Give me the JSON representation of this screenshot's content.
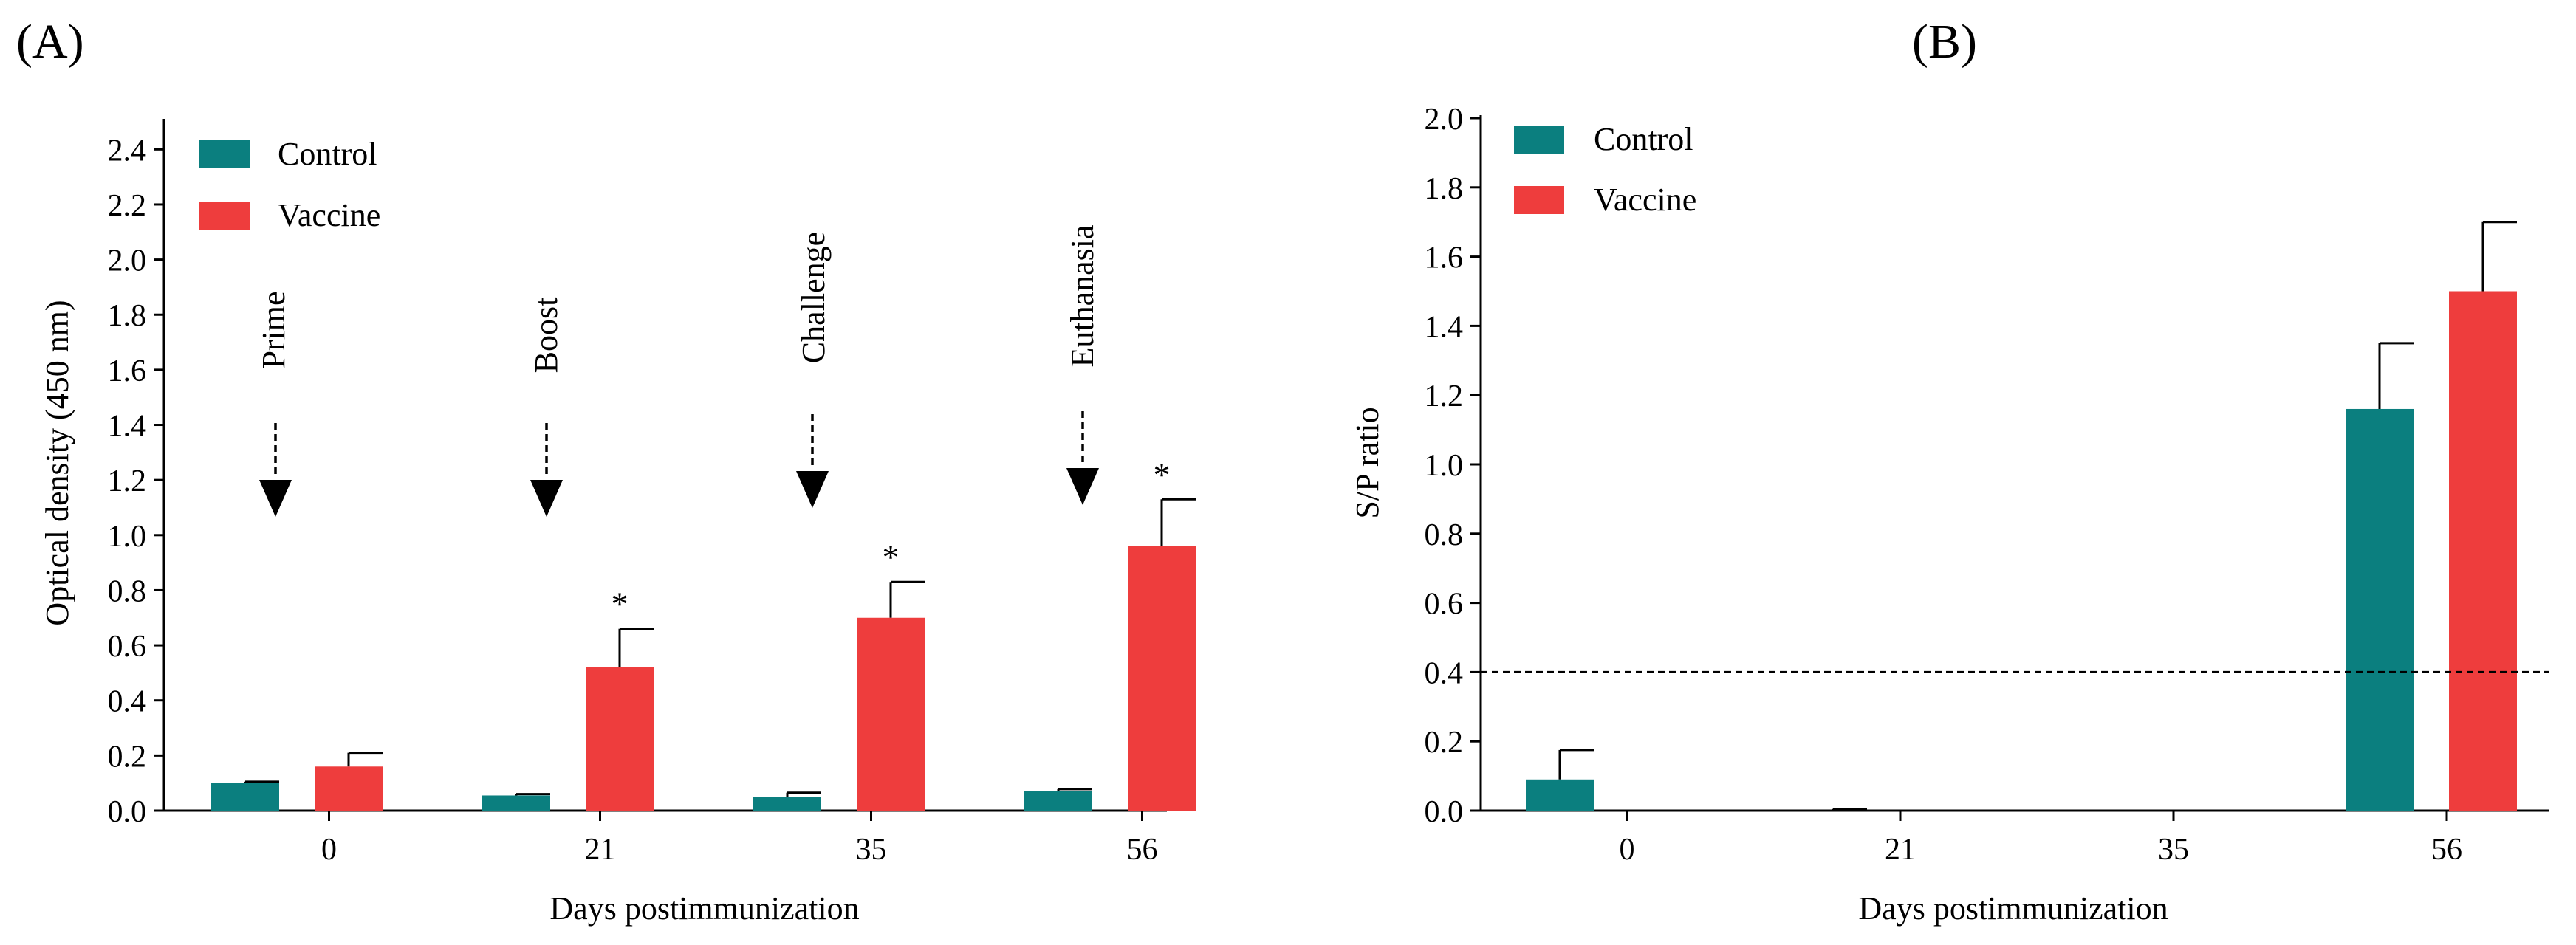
{
  "chart_data": [
    {
      "panel_label": "(A)",
      "type": "bar",
      "xlabel": "Days postimmunization",
      "ylabel": "Optical density (450 nm)",
      "ylim": [
        0,
        2.5
      ],
      "yticks": [
        "0.0",
        "0.2",
        "0.4",
        "0.6",
        "0.8",
        "1.0",
        "1.2",
        "1.4",
        "1.6",
        "1.8",
        "2.0",
        "2.2",
        "2.4"
      ],
      "categories": [
        "0",
        "21",
        "35",
        "56"
      ],
      "series": [
        {
          "name": "Control",
          "color": "#0B7F7F",
          "values": [
            0.1,
            0.055,
            0.05,
            0.07
          ],
          "errors": [
            0.005,
            0.005,
            0.015,
            0.008
          ]
        },
        {
          "name": "Vaccine",
          "color": "#EE3D3D",
          "values": [
            0.16,
            0.52,
            0.7,
            0.96
          ],
          "errors": [
            0.05,
            0.14,
            0.13,
            0.17
          ]
        }
      ],
      "significance": [
        "",
        "*",
        "*",
        "*"
      ],
      "events": [
        {
          "label": "Prime",
          "category": "0"
        },
        {
          "label": "Boost",
          "category": "21"
        },
        {
          "label": "Challenge",
          "category": "35"
        },
        {
          "label": "Euthanasia",
          "category": "56"
        }
      ],
      "legend": "top-left"
    },
    {
      "panel_label": "(B)",
      "type": "bar",
      "xlabel": "Days postimmunization",
      "ylabel": "S/P ratio",
      "ylim": [
        0,
        2.0
      ],
      "yticks": [
        "0.0",
        "0.2",
        "0.4",
        "0.6",
        "0.8",
        "1.0",
        "1.2",
        "1.4",
        "1.6",
        "1.8",
        "2.0"
      ],
      "categories": [
        "0",
        "21",
        "35",
        "56"
      ],
      "series": [
        {
          "name": "Control",
          "color": "#0B7F7F",
          "values": [
            0.09,
            0.0,
            0.0,
            1.16
          ],
          "errors": [
            0.085,
            0.005,
            0.0,
            0.19
          ]
        },
        {
          "name": "Vaccine",
          "color": "#EE3D3D",
          "values": [
            0.0,
            0.0,
            0.0,
            1.5
          ],
          "errors": [
            0.0,
            0.0,
            0.0,
            0.2
          ]
        }
      ],
      "cutoff": 0.4,
      "legend": "top-left"
    }
  ]
}
